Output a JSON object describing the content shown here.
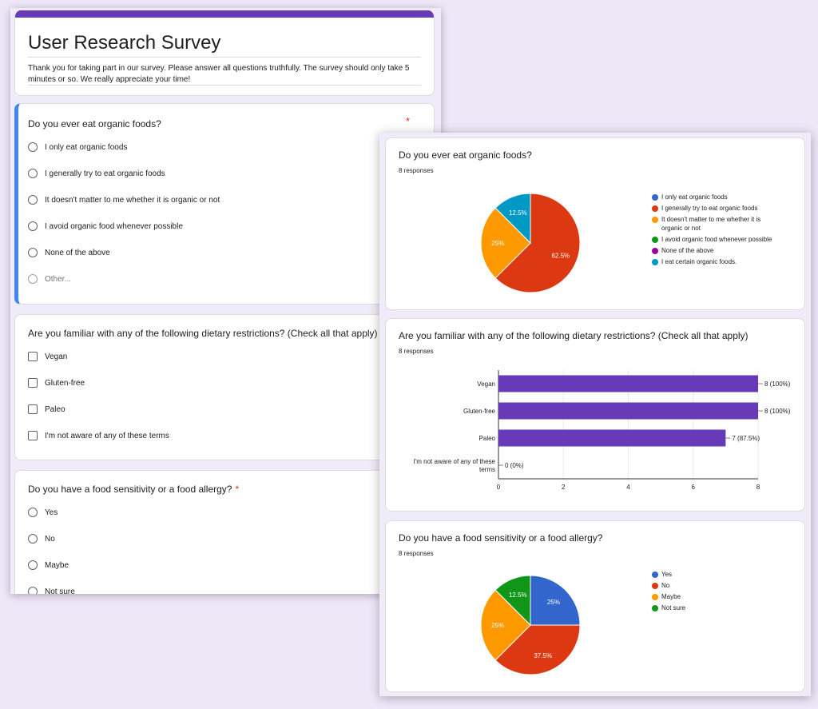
{
  "form": {
    "title": "User Research Survey",
    "description": "Thank you for taking part in our survey. Please answer all questions truthfully. The survey should only take 5 minutes or so. We really appreciate your time!",
    "required_mark": "*",
    "questions": [
      {
        "title": "Do you ever eat organic foods?",
        "options": [
          "I only eat organic foods",
          "I generally try to eat organic foods",
          "It doesn't matter to me whether it is organic or not",
          "I avoid organic food whenever possible",
          "None of the above"
        ],
        "other_label": "Other..."
      },
      {
        "title": "Are you familiar with any of the following dietary restrictions? (Check all that apply)",
        "options": [
          "Vegan",
          "Gluten-free",
          "Paleo",
          "I'm not aware of any of these terms"
        ]
      },
      {
        "title": "Do you have a food sensitivity or a food allergy?",
        "options": [
          "Yes",
          "No",
          "Maybe",
          "Not sure"
        ]
      }
    ]
  },
  "responses": {
    "cards": [
      {
        "title": "Do you ever eat organic foods?",
        "count": "8 responses"
      },
      {
        "title": "Are you familiar with any of the following dietary restrictions? (Check all that apply)",
        "count": "8 responses"
      },
      {
        "title": "Do you have a food sensitivity or a food allergy?",
        "count": "8 responses"
      }
    ]
  },
  "colors": {
    "accent": "#673ab7",
    "focus": "#4285f4",
    "required": "#d93025",
    "bar": "#673ab7",
    "blue": "#3366cc",
    "red": "#dc3912",
    "orange": "#ff9900",
    "green": "#109618",
    "purple": "#990099",
    "teal": "#0099c6"
  },
  "chart_data": [
    {
      "type": "pie",
      "title": "Do you ever eat organic foods?",
      "categories": [
        "I only eat organic foods",
        "I generally try to eat organic foods",
        "It doesn't matter to me whether it is organic or not",
        "I avoid organic food whenever possible",
        "None of the above",
        "I eat certain organic foods."
      ],
      "legend_lines": [
        [
          "I only eat organic foods"
        ],
        [
          "I generally try to eat organic foods"
        ],
        [
          "It doesn't matter to me whether it is",
          "organic or not"
        ],
        [
          "I avoid organic food whenever possible"
        ],
        [
          "None of the above"
        ],
        [
          "I eat certain organic foods."
        ]
      ],
      "values": [
        0,
        62.5,
        25,
        0,
        0,
        12.5
      ],
      "labels": [
        "",
        "62.5%",
        "25%",
        "",
        "",
        "12.5%"
      ],
      "colors": [
        "#3366cc",
        "#dc3912",
        "#ff9900",
        "#109618",
        "#990099",
        "#0099c6"
      ],
      "legend": "right"
    },
    {
      "type": "bar",
      "orientation": "horizontal",
      "title": "Are you familiar with any of the following dietary restrictions? (Check all that apply)",
      "categories": [
        "Vegan",
        "Gluten-free",
        "Paleo",
        "I'm not aware of any of these terms"
      ],
      "category_lines": [
        [
          "Vegan"
        ],
        [
          "Gluten-free"
        ],
        [
          "Paleo"
        ],
        [
          "I'm not aware of any of these",
          "terms"
        ]
      ],
      "values": [
        8,
        8,
        7,
        0
      ],
      "data_labels": [
        "8 (100%)",
        "8 (100%)",
        "7 (87.5%)",
        "0 (0%)"
      ],
      "xlim": [
        0,
        8
      ],
      "xticks": [
        "0",
        "2",
        "4",
        "6",
        "8"
      ],
      "xtick_values": [
        0,
        2,
        4,
        6,
        8
      ],
      "color": "#673ab7"
    },
    {
      "type": "pie",
      "title": "Do you have a food sensitivity or a food allergy?",
      "categories": [
        "Yes",
        "No",
        "Maybe",
        "Not sure"
      ],
      "legend_lines": [
        [
          "Yes"
        ],
        [
          "No"
        ],
        [
          "Maybe"
        ],
        [
          "Not sure"
        ]
      ],
      "values": [
        25,
        37.5,
        25,
        12.5
      ],
      "labels": [
        "25%",
        "37.5%",
        "25%",
        "12.5%"
      ],
      "colors": [
        "#3366cc",
        "#dc3912",
        "#ff9900",
        "#109618"
      ],
      "legend": "right"
    }
  ]
}
